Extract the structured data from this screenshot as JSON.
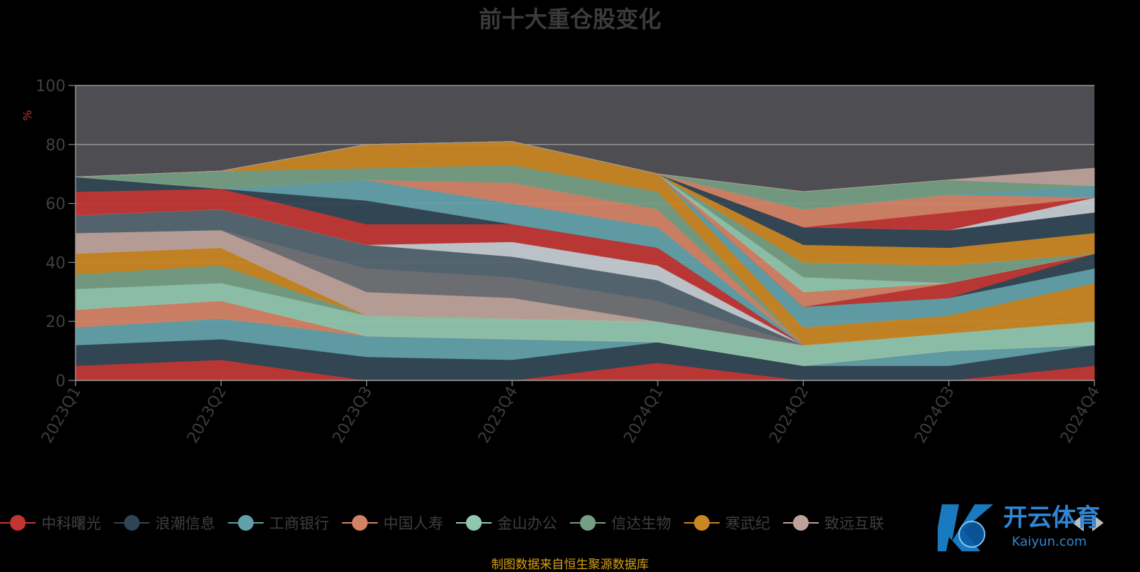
{
  "footnote": "制图数据来自恒生聚源数据库",
  "watermark": {
    "text": "开云体育",
    "sub": "Kaiyun.com"
  },
  "chart_data": {
    "type": "area",
    "stacked": true,
    "title": "前十大重仓股变化",
    "ylabel": "%",
    "ylim": [
      0,
      100
    ],
    "yticks": [
      0,
      20,
      40,
      60,
      80,
      100
    ],
    "categories": [
      "2023Q1",
      "2023Q2",
      "2023Q3",
      "2023Q4",
      "2024Q1",
      "2024Q2",
      "2024Q3",
      "2024Q4"
    ],
    "grid": true,
    "plot_background": "#4e4e52",
    "series": [
      {
        "name": "中科曙光",
        "color": "#c23531",
        "values": [
          5,
          7,
          0,
          0,
          6,
          0,
          0,
          5
        ]
      },
      {
        "name": "浪潮信息",
        "color": "#2f4554",
        "values": [
          7,
          7,
          8,
          7,
          7,
          5,
          5,
          7
        ]
      },
      {
        "name": "工商银行",
        "color": "#61a0a8",
        "values": [
          6,
          7,
          7,
          7,
          0,
          0,
          5,
          0
        ]
      },
      {
        "name": "中国人寿",
        "color": "#d48265",
        "values": [
          6,
          6,
          0,
          0,
          0,
          0,
          0,
          0
        ]
      },
      {
        "name": "金山办公",
        "color": "#91c7ae",
        "values": [
          7,
          6,
          7,
          7,
          7,
          7,
          6,
          8
        ]
      },
      {
        "name": "信达生物",
        "color": "#749f83",
        "values": [
          5,
          6,
          0,
          0,
          0,
          0,
          0,
          0
        ]
      },
      {
        "name": "寒武纪",
        "color": "#ca8622",
        "values": [
          7,
          6,
          0,
          0,
          0,
          0,
          0,
          5
        ]
      },
      {
        "name": "致远互联",
        "color": "#bda29a",
        "values": [
          7,
          6,
          8,
          7,
          0,
          0,
          0,
          0
        ]
      },
      {
        "name": "",
        "color": "#6e7074",
        "values": [
          0,
          0,
          8,
          7,
          7,
          0,
          0,
          0
        ]
      },
      {
        "name": "",
        "color": "#546570",
        "values": [
          6,
          7,
          8,
          7,
          7,
          0,
          0,
          0
        ]
      },
      {
        "name": "",
        "color": "#c4ccd3",
        "values": [
          0,
          0,
          0,
          5,
          5,
          0,
          0,
          0
        ]
      },
      {
        "name": "",
        "color": "#c23531",
        "values": [
          8,
          7,
          7,
          6,
          6,
          0,
          0,
          0
        ]
      },
      {
        "name": "",
        "color": "#2f4554",
        "values": [
          5,
          0,
          8,
          0,
          0,
          0,
          0,
          0
        ]
      },
      {
        "name": "",
        "color": "#61a0a8",
        "values": [
          0,
          0,
          7,
          7,
          7,
          0,
          0,
          0
        ]
      },
      {
        "name": "",
        "color": "#d48265",
        "values": [
          0,
          0,
          0,
          7,
          6,
          0,
          0,
          0
        ]
      },
      {
        "name": "",
        "color": "#749f83",
        "values": [
          0,
          6,
          4,
          6,
          6,
          0,
          0,
          0
        ]
      },
      {
        "name": "",
        "color": "#ca8622",
        "values": [
          0,
          0,
          8,
          8,
          6,
          0,
          0,
          0
        ]
      },
      {
        "name": "",
        "color": "#ca8622",
        "values": [
          0,
          0,
          0,
          0,
          0,
          6,
          6,
          8
        ]
      },
      {
        "name": "",
        "color": "#61a0a8",
        "values": [
          0,
          0,
          0,
          0,
          0,
          7,
          6,
          5
        ]
      },
      {
        "name": "",
        "color": "#2f4554",
        "values": [
          0,
          0,
          0,
          0,
          0,
          0,
          0,
          5
        ]
      },
      {
        "name": "",
        "color": "#c23531",
        "values": [
          0,
          0,
          0,
          0,
          0,
          0,
          5,
          0
        ]
      },
      {
        "name": "",
        "color": "#d48265",
        "values": [
          0,
          0,
          0,
          0,
          0,
          5,
          0,
          0
        ]
      },
      {
        "name": "",
        "color": "#91c7ae",
        "values": [
          0,
          0,
          0,
          0,
          0,
          5,
          0,
          0
        ]
      },
      {
        "name": "",
        "color": "#749f83",
        "values": [
          0,
          0,
          0,
          0,
          0,
          5,
          6,
          0
        ]
      },
      {
        "name": "",
        "color": "#ca8622",
        "values": [
          0,
          0,
          0,
          0,
          0,
          6,
          6,
          7
        ]
      },
      {
        "name": "",
        "color": "#2f4554",
        "values": [
          0,
          0,
          0,
          0,
          0,
          6,
          6,
          7
        ]
      },
      {
        "name": "",
        "color": "#c4ccd3",
        "values": [
          0,
          0,
          0,
          0,
          0,
          0,
          0,
          5
        ]
      },
      {
        "name": "",
        "color": "#c23531",
        "values": [
          0,
          0,
          0,
          0,
          0,
          0,
          6,
          0
        ]
      },
      {
        "name": "",
        "color": "#d48265",
        "values": [
          0,
          0,
          0,
          0,
          0,
          6,
          6,
          0
        ]
      },
      {
        "name": "",
        "color": "#61a0a8",
        "values": [
          0,
          0,
          0,
          0,
          0,
          0,
          0,
          4
        ]
      },
      {
        "name": "",
        "color": "#749f83",
        "values": [
          0,
          0,
          0,
          0,
          0,
          6,
          5,
          0
        ]
      },
      {
        "name": "",
        "color": "#bda29a",
        "values": [
          0,
          0,
          0,
          0,
          0,
          0,
          0,
          6
        ]
      }
    ]
  }
}
